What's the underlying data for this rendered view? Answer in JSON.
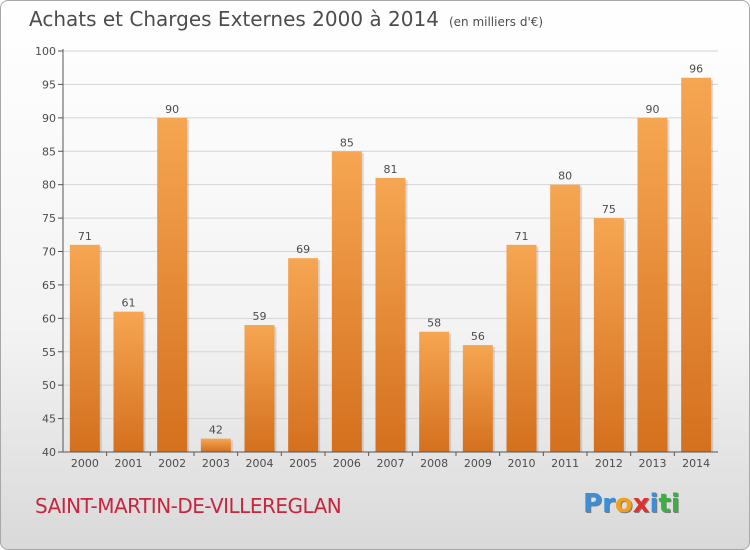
{
  "header": {
    "title": "Achats et Charges Externes 2000 à 2014",
    "unit": "(en milliers d'€)"
  },
  "footer": {
    "commune": "SAINT-MARTIN-DE-VILLEREGLAN",
    "logo_letters": [
      "P",
      "r",
      "o",
      "x",
      "i",
      "t",
      "i"
    ],
    "logo_colors": [
      "#3a8fd8",
      "#3a8fd8",
      "#f0a020",
      "#e03030",
      "#3a8fd8",
      "#3ab040",
      "#3ab040"
    ]
  },
  "colors": {
    "bar_light": "#f6a652",
    "bar_dark": "#d4701e",
    "grid": "#d4d4d4",
    "axis": "#555555",
    "text": "#4d4d4d"
  },
  "chart_data": {
    "type": "bar",
    "title": "Achats et Charges Externes 2000 à 2014",
    "categories": [
      "2000",
      "2001",
      "2002",
      "2003",
      "2004",
      "2005",
      "2006",
      "2007",
      "2008",
      "2009",
      "2010",
      "2011",
      "2012",
      "2013",
      "2014"
    ],
    "values": [
      71,
      61,
      90,
      42,
      59,
      69,
      85,
      81,
      58,
      56,
      71,
      80,
      75,
      90,
      96
    ],
    "ylim": [
      40,
      100
    ],
    "yticks": [
      40,
      45,
      50,
      55,
      60,
      65,
      70,
      75,
      80,
      85,
      90,
      95,
      100
    ],
    "grid": true,
    "xlabel": "",
    "ylabel": ""
  }
}
